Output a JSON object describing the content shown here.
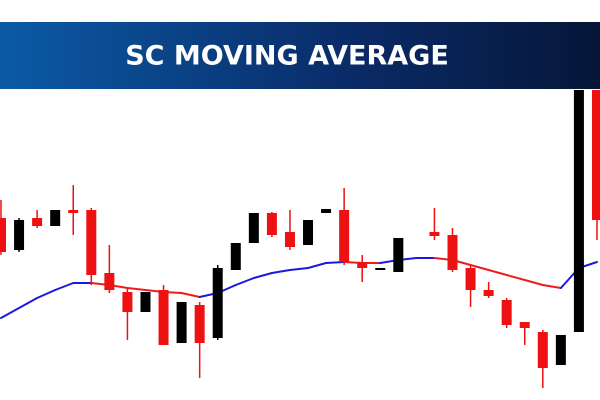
{
  "chart_data": {
    "type": "candlestick",
    "title": "SC MOVING AVERAGE",
    "open": [
      182,
      150,
      182,
      174,
      190,
      190,
      127,
      108,
      88,
      110,
      57,
      95,
      62,
      130,
      157,
      187,
      168,
      155,
      187,
      190,
      138,
      130,
      128,
      null,
      168,
      165,
      132,
      110,
      100,
      78,
      68,
      35,
      68,
      310
    ],
    "high": [
      200,
      182,
      190,
      190,
      215,
      192,
      155,
      112,
      108,
      115,
      98,
      98,
      135,
      157,
      187,
      188,
      190,
      180,
      191,
      212,
      145,
      132,
      162,
      null,
      192,
      172,
      135,
      118,
      102,
      78,
      70,
      65,
      310,
      310
    ],
    "low": [
      145,
      148,
      172,
      174,
      165,
      115,
      107,
      60,
      88,
      55,
      57,
      22,
      60,
      130,
      157,
      163,
      150,
      155,
      187,
      135,
      118,
      130,
      128,
      null,
      160,
      128,
      93,
      102,
      72,
      55,
      12,
      35,
      68,
      160
    ],
    "close": [
      148,
      180,
      174,
      190,
      187,
      125,
      110,
      88,
      108,
      55,
      98,
      57,
      132,
      157,
      187,
      165,
      153,
      180,
      191,
      138,
      132,
      132,
      162,
      null,
      164,
      130,
      110,
      104,
      75,
      72,
      32,
      65,
      310,
      180
    ],
    "ma": {
      "values": [
        82,
        92,
        102,
        110,
        117,
        117,
        115,
        112,
        110,
        108,
        107,
        103,
        107,
        115,
        122,
        127,
        130,
        132,
        137,
        138,
        137,
        137,
        140,
        142,
        142,
        140,
        135,
        130,
        125,
        120,
        115,
        112,
        132,
        138
      ],
      "up_color": "#1a1adb",
      "down_color": "#ee1c1c"
    },
    "up_color": "#000000",
    "down_color": "#ee1111",
    "ylim": [
      0,
      310
    ]
  }
}
